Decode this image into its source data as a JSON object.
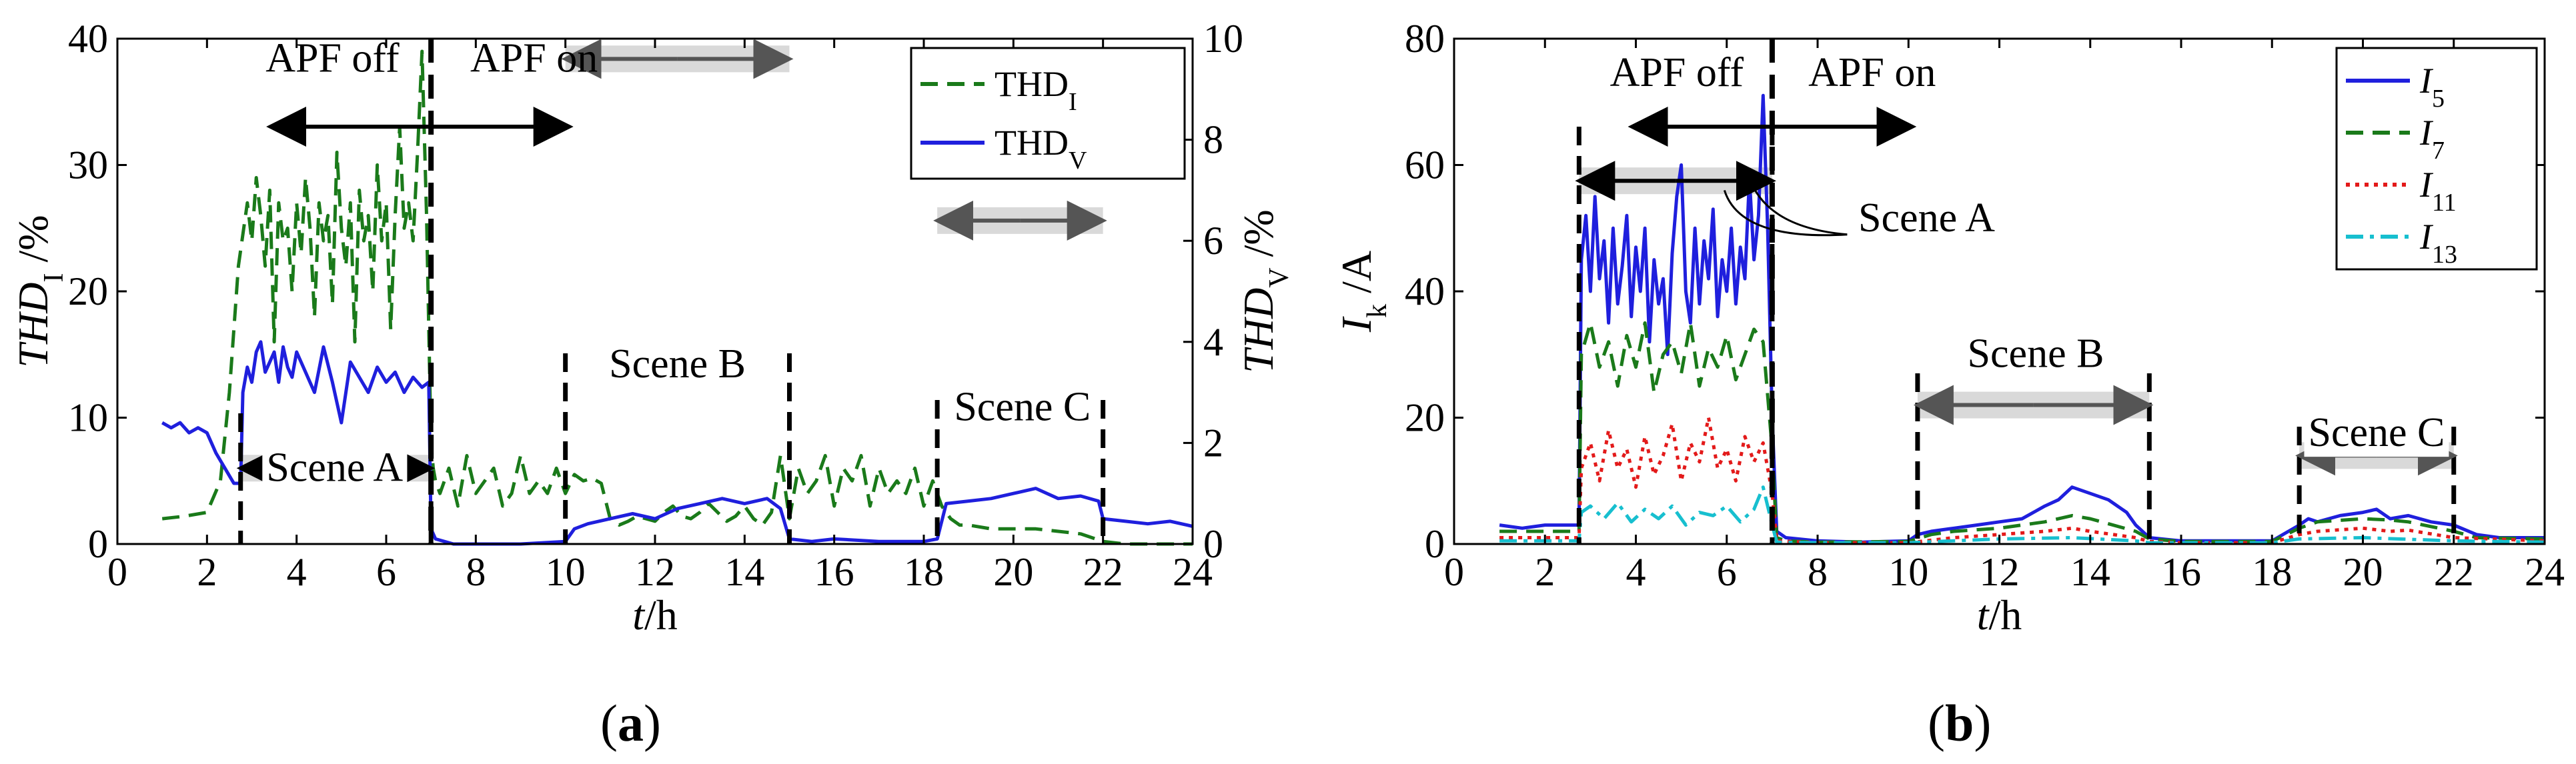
{
  "chart_data": [
    {
      "id": "a",
      "type": "line",
      "panel_label_open": "(",
      "panel_label_letter": "a",
      "panel_label_close": ")",
      "xlabel_italic": "t",
      "xlabel_rest": "/h",
      "ylabel_left": {
        "main": "THD",
        "sub": "I",
        "rest": " /%"
      },
      "ylabel_right": {
        "main": "THD",
        "sub": "V",
        "rest": " /%"
      },
      "xlim": [
        0,
        24
      ],
      "ylim_left": [
        0,
        40
      ],
      "ylim_right": [
        0,
        10
      ],
      "xticks": [
        0,
        2,
        4,
        6,
        8,
        10,
        12,
        14,
        16,
        18,
        20,
        22,
        24
      ],
      "yticks_left": [
        0,
        10,
        20,
        30,
        40
      ],
      "yticks_right": [
        0,
        2,
        4,
        6,
        8,
        10
      ],
      "legend_position": "top-right",
      "series": [
        {
          "name": "THD",
          "name_sub": "I",
          "axis": "left",
          "color": "#1a7a1a",
          "style": "dashed",
          "x": [
            1.0,
            1.5,
            2.0,
            2.3,
            2.5,
            2.7,
            2.9,
            3.0,
            3.1,
            3.2,
            3.3,
            3.4,
            3.5,
            3.6,
            3.7,
            3.8,
            3.9,
            4.0,
            4.1,
            4.2,
            4.3,
            4.4,
            4.5,
            4.6,
            4.7,
            4.8,
            4.9,
            5.0,
            5.1,
            5.2,
            5.3,
            5.4,
            5.5,
            5.6,
            5.7,
            5.8,
            5.9,
            6.0,
            6.1,
            6.2,
            6.3,
            6.4,
            6.5,
            6.6,
            6.7,
            6.8,
            6.9,
            7.0,
            7.05,
            7.1,
            7.2,
            7.4,
            7.6,
            7.8,
            8.0,
            8.2,
            8.4,
            8.6,
            8.8,
            9.0,
            9.2,
            9.4,
            9.6,
            9.8,
            10.0,
            10.2,
            10.4,
            10.6,
            10.8,
            11.0,
            11.2,
            11.4,
            11.6,
            11.8,
            12.0,
            12.2,
            12.4,
            12.6,
            12.8,
            13.0,
            13.2,
            13.4,
            13.6,
            13.8,
            14.0,
            14.2,
            14.4,
            14.6,
            14.8,
            15.0,
            15.2,
            15.4,
            15.6,
            15.8,
            16.0,
            16.2,
            16.4,
            16.6,
            16.8,
            17.0,
            17.2,
            17.4,
            17.6,
            17.8,
            18.0,
            18.2,
            18.4,
            18.6,
            18.8,
            19.0,
            19.5,
            20.0,
            20.5,
            21.0,
            21.5,
            22.0,
            22.5,
            23.0,
            23.5,
            24.0
          ],
          "y": [
            2.0,
            2.2,
            2.5,
            5.0,
            12.0,
            22.0,
            27.0,
            24.0,
            29.0,
            26.0,
            22.0,
            28.0,
            16.0,
            27.0,
            24.0,
            25.0,
            20.0,
            27.0,
            23.0,
            29.0,
            25.0,
            18.0,
            27.0,
            24.0,
            26.0,
            19.0,
            31.0,
            25.0,
            22.0,
            27.0,
            16.0,
            28.0,
            24.0,
            26.0,
            20.0,
            30.0,
            24.0,
            27.0,
            17.0,
            26.0,
            33.0,
            25.0,
            27.0,
            24.0,
            31.0,
            39.0,
            26.0,
            8.0,
            6.0,
            5.0,
            4.0,
            6.0,
            3.0,
            7.0,
            4.0,
            5.0,
            6.0,
            3.0,
            4.0,
            7.0,
            4.0,
            5.0,
            4.0,
            6.0,
            4.0,
            5.5,
            5.0,
            5.2,
            4.8,
            2.0,
            1.5,
            1.8,
            2.2,
            2.0,
            1.8,
            2.5,
            3.0,
            2.2,
            2.0,
            2.5,
            3.2,
            2.5,
            1.8,
            2.2,
            3.0,
            2.0,
            1.5,
            2.5,
            7.0,
            2.0,
            6.0,
            4.0,
            5.0,
            7.0,
            3.0,
            6.0,
            5.0,
            7.0,
            3.0,
            6.0,
            4.0,
            5.0,
            4.0,
            6.0,
            3.0,
            5.0,
            3.0,
            2.0,
            1.5,
            1.5,
            1.2,
            1.2,
            1.2,
            1.0,
            0.8,
            0.2,
            0.0,
            0.0,
            0.0,
            0.0
          ]
        },
        {
          "name": "THD",
          "name_sub": "V",
          "axis": "right",
          "color": "#1f1fdd",
          "style": "solid",
          "x": [
            1.0,
            1.2,
            1.4,
            1.6,
            1.8,
            2.0,
            2.2,
            2.4,
            2.6,
            2.75,
            2.8,
            2.9,
            3.0,
            3.1,
            3.2,
            3.3,
            3.4,
            3.5,
            3.6,
            3.7,
            3.8,
            3.9,
            4.0,
            4.2,
            4.4,
            4.6,
            4.8,
            5.0,
            5.2,
            5.4,
            5.6,
            5.8,
            6.0,
            6.2,
            6.4,
            6.6,
            6.8,
            6.95,
            7.0,
            7.1,
            7.5,
            8.0,
            9.0,
            10.0,
            10.2,
            10.5,
            11.0,
            11.5,
            12.0,
            12.5,
            13.0,
            13.5,
            14.0,
            14.5,
            14.8,
            15.0,
            15.5,
            16.0,
            17.0,
            18.0,
            18.3,
            18.5,
            19.0,
            19.5,
            20.0,
            20.5,
            21.0,
            21.5,
            21.9,
            22.0,
            22.5,
            23.0,
            23.5,
            24.0
          ],
          "y": [
            2.4,
            2.3,
            2.4,
            2.2,
            2.3,
            2.2,
            1.8,
            1.5,
            1.2,
            1.2,
            3.0,
            3.5,
            3.2,
            3.8,
            4.0,
            3.4,
            3.6,
            3.8,
            3.2,
            3.9,
            3.5,
            3.3,
            3.8,
            3.4,
            3.0,
            3.9,
            3.2,
            2.4,
            3.6,
            3.3,
            3.0,
            3.5,
            3.2,
            3.4,
            3.0,
            3.3,
            3.1,
            3.2,
            0.3,
            0.1,
            0.0,
            0.0,
            0.0,
            0.05,
            0.3,
            0.4,
            0.5,
            0.6,
            0.5,
            0.7,
            0.8,
            0.9,
            0.8,
            0.9,
            0.7,
            0.1,
            0.05,
            0.1,
            0.05,
            0.05,
            0.1,
            0.8,
            0.85,
            0.9,
            1.0,
            1.1,
            0.9,
            0.95,
            0.85,
            0.5,
            0.45,
            0.4,
            0.45,
            0.35
          ]
        }
      ],
      "annotations": [
        {
          "text": "APF off",
          "x": 4.8,
          "y_right": 9.35
        },
        {
          "text": "APF on",
          "x": 9.3,
          "y_right": 9.35
        },
        {
          "text": "Scene A",
          "x": 4.85,
          "y": 5.0
        },
        {
          "text": "Scene B",
          "x": 12.5,
          "y": 13.2
        },
        {
          "text": "Scene C",
          "x": 20.2,
          "y": 9.8
        }
      ],
      "markers": {
        "vline_x": 7.0,
        "apf_arrow_left": [
          3.5,
          7.0
        ],
        "apf_arrow_right": [
          7.0,
          10.0
        ],
        "scenes": [
          {
            "x0": 2.75,
            "x1": 7.0,
            "arrow_y": 1.5,
            "bar_y": 1.5
          },
          {
            "x0": 10.0,
            "x1": 15.0,
            "arrow_y": 9.6,
            "bar_y": 9.6
          },
          {
            "x0": 18.3,
            "x1": 22.0,
            "arrow_y": 6.4,
            "bar_y": 6.4
          }
        ]
      }
    },
    {
      "id": "b",
      "type": "line",
      "panel_label_open": "(",
      "panel_label_letter": "b",
      "panel_label_close": ")",
      "xlabel_italic": "t",
      "xlabel_rest": "/h",
      "ylabel": {
        "main": "I",
        "sub": "k",
        "rest": " /A"
      },
      "xlim": [
        0,
        24
      ],
      "ylim": [
        0,
        80
      ],
      "xticks": [
        0,
        2,
        4,
        6,
        8,
        10,
        12,
        14,
        16,
        18,
        20,
        22,
        24
      ],
      "yticks": [
        0,
        20,
        40,
        60,
        80
      ],
      "legend_position": "top-right",
      "series": [
        {
          "name": "I",
          "name_sub": "5",
          "color": "#1f1fdd",
          "style": "solid",
          "x": [
            1.0,
            1.5,
            2.0,
            2.5,
            2.75,
            2.8,
            2.9,
            3.0,
            3.1,
            3.2,
            3.3,
            3.4,
            3.5,
            3.6,
            3.7,
            3.8,
            3.9,
            4.0,
            4.1,
            4.2,
            4.3,
            4.4,
            4.5,
            4.6,
            4.7,
            4.8,
            4.9,
            5.0,
            5.1,
            5.2,
            5.3,
            5.4,
            5.5,
            5.6,
            5.7,
            5.8,
            5.9,
            6.0,
            6.1,
            6.2,
            6.3,
            6.4,
            6.5,
            6.6,
            6.7,
            6.8,
            6.9,
            7.0,
            7.1,
            7.3,
            8.0,
            9.0,
            10.0,
            10.2,
            10.5,
            11.0,
            11.5,
            12.0,
            12.5,
            13.0,
            13.3,
            13.6,
            14.0,
            14.4,
            14.8,
            15.0,
            15.3,
            16.0,
            17.0,
            18.0,
            18.6,
            18.8,
            19.0,
            19.5,
            20.0,
            20.3,
            20.6,
            21.0,
            21.5,
            22.0,
            22.5,
            23.0,
            23.5,
            24.0
          ],
          "y": [
            3.0,
            2.5,
            3.0,
            3.0,
            3.0,
            45.0,
            52.0,
            40.0,
            55.0,
            42.0,
            48.0,
            35.0,
            50.0,
            38.0,
            44.0,
            52.0,
            36.0,
            47.0,
            40.0,
            50.0,
            32.0,
            45.0,
            38.0,
            42.0,
            30.0,
            46.0,
            55.0,
            60.0,
            40.0,
            35.0,
            50.0,
            38.0,
            48.0,
            42.0,
            53.0,
            36.0,
            45.0,
            40.0,
            50.0,
            38.0,
            47.0,
            42.0,
            58.0,
            45.0,
            52.0,
            71.0,
            50.0,
            20.0,
            2.0,
            1.0,
            0.5,
            0.3,
            0.5,
            1.5,
            2.0,
            2.5,
            3.0,
            3.5,
            4.0,
            6.0,
            7.0,
            9.0,
            8.0,
            7.0,
            5.0,
            3.0,
            1.0,
            0.5,
            0.5,
            0.5,
            3.0,
            4.0,
            3.5,
            4.5,
            5.0,
            5.5,
            4.0,
            4.5,
            3.5,
            3.0,
            1.5,
            1.0,
            1.0,
            1.0
          ]
        },
        {
          "name": "I",
          "name_sub": "7",
          "color": "#1a7a1a",
          "style": "dashed",
          "x": [
            1.0,
            1.5,
            2.0,
            2.5,
            2.75,
            2.8,
            3.0,
            3.2,
            3.4,
            3.6,
            3.8,
            4.0,
            4.2,
            4.4,
            4.6,
            4.8,
            5.0,
            5.2,
            5.4,
            5.6,
            5.8,
            6.0,
            6.2,
            6.4,
            6.6,
            6.8,
            7.0,
            7.1,
            7.3,
            8.0,
            10.0,
            10.5,
            11.0,
            12.0,
            13.0,
            13.6,
            14.0,
            15.0,
            15.3,
            16.0,
            18.0,
            18.6,
            19.0,
            20.0,
            20.6,
            21.0,
            22.0,
            22.5,
            24.0
          ],
          "y": [
            2.0,
            2.0,
            2.0,
            2.0,
            2.0,
            30.0,
            35.0,
            28.0,
            32.0,
            25.0,
            33.0,
            28.0,
            35.0,
            24.0,
            30.0,
            32.0,
            27.0,
            35.0,
            25.0,
            31.0,
            28.0,
            33.0,
            26.0,
            30.0,
            34.0,
            32.0,
            15.0,
            1.0,
            0.5,
            0.3,
            0.4,
            1.5,
            2.0,
            2.5,
            3.5,
            4.5,
            4.0,
            2.0,
            0.8,
            0.4,
            0.4,
            2.5,
            3.5,
            4.0,
            3.8,
            3.5,
            2.0,
            1.0,
            0.8
          ]
        },
        {
          "name": "I",
          "name_sub": "11",
          "color": "#e31a1a",
          "style": "dotted",
          "x": [
            1.0,
            2.0,
            2.75,
            2.8,
            3.0,
            3.2,
            3.4,
            3.6,
            3.8,
            4.0,
            4.2,
            4.4,
            4.6,
            4.8,
            5.0,
            5.2,
            5.4,
            5.6,
            5.8,
            6.0,
            6.2,
            6.4,
            6.6,
            6.8,
            7.0,
            7.1,
            8.0,
            10.0,
            11.0,
            12.0,
            13.0,
            13.6,
            14.0,
            15.0,
            15.3,
            16.0,
            18.0,
            18.6,
            19.0,
            20.0,
            20.6,
            21.0,
            22.0,
            24.0
          ],
          "y": [
            1.0,
            1.0,
            1.0,
            12.0,
            16.0,
            10.0,
            18.0,
            12.0,
            15.0,
            9.0,
            17.0,
            11.0,
            14.0,
            19.0,
            10.0,
            16.0,
            13.0,
            20.0,
            12.0,
            15.0,
            10.0,
            17.0,
            13.0,
            16.0,
            8.0,
            0.5,
            0.2,
            0.2,
            1.0,
            1.5,
            2.0,
            2.5,
            2.0,
            1.0,
            0.4,
            0.2,
            0.2,
            1.5,
            2.0,
            2.5,
            2.0,
            2.2,
            1.0,
            0.5
          ]
        },
        {
          "name": "I",
          "name_sub": "13",
          "color": "#17bfcf",
          "style": "dashdot",
          "x": [
            1.0,
            2.0,
            2.75,
            2.8,
            3.0,
            3.3,
            3.6,
            3.9,
            4.2,
            4.5,
            4.8,
            5.1,
            5.4,
            5.7,
            6.0,
            6.3,
            6.6,
            6.8,
            7.0,
            7.1,
            8.0,
            10.0,
            12.0,
            13.6,
            15.0,
            15.3,
            18.0,
            18.6,
            20.0,
            22.0,
            24.0
          ],
          "y": [
            0.5,
            0.5,
            0.5,
            5.0,
            6.0,
            4.0,
            6.5,
            3.5,
            5.5,
            4.0,
            6.0,
            3.0,
            5.0,
            4.5,
            6.0,
            3.5,
            5.5,
            9.0,
            3.0,
            0.3,
            0.2,
            0.2,
            0.8,
            1.0,
            0.5,
            0.2,
            0.2,
            0.8,
            1.0,
            0.5,
            0.3
          ]
        }
      ],
      "annotations": [
        {
          "text": "APF off",
          "x": 4.9,
          "y": 72.5
        },
        {
          "text": "APF on",
          "x": 9.2,
          "y": 72.5
        },
        {
          "text": "Scene A",
          "x": 10.4,
          "y": 49.5
        },
        {
          "text": "Scene B",
          "x": 12.8,
          "y": 28.0
        },
        {
          "text": "Scene C",
          "x": 20.3,
          "y": 15.5
        }
      ],
      "markers": {
        "vline_x": 7.0,
        "apf_arrow_left": [
          4.0,
          7.0
        ],
        "apf_arrow_right": [
          7.0,
          10.0
        ],
        "scenes": [
          {
            "x0": 2.75,
            "x1": 7.0,
            "arrow_y": 57.5,
            "bar_y": 57.5,
            "dashed_from": 0,
            "dashed_to": 66
          },
          {
            "x0": 10.2,
            "x1": 15.3,
            "arrow_y": 22.0,
            "bar_y": 22.0
          },
          {
            "x0": 18.6,
            "x1": 22.0,
            "arrow_y": 14.0,
            "bar_y": 14.0
          }
        ]
      }
    }
  ]
}
